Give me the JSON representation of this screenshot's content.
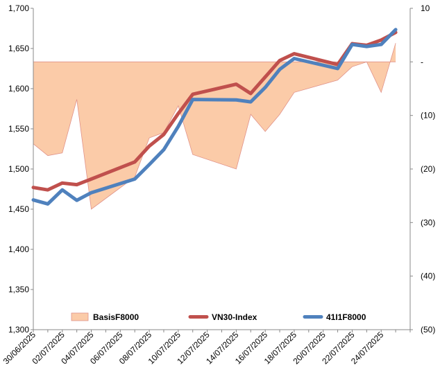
{
  "chart_data": {
    "type": "line",
    "x_tick_labels": [
      "30/06/2025",
      "02/07/2025",
      "04/07/2025",
      "06/07/2025",
      "08/07/2025",
      "10/07/2025",
      "12/07/2025",
      "14/07/2025",
      "16/07/2025",
      "18/07/2025",
      "20/07/2025",
      "22/07/2025",
      "24/07/2025"
    ],
    "x_dates": [
      "2025-06-30",
      "2025-07-01",
      "2025-07-02",
      "2025-07-03",
      "2025-07-04",
      "2025-07-07",
      "2025-07-08",
      "2025-07-09",
      "2025-07-10",
      "2025-07-11",
      "2025-07-14",
      "2025-07-15",
      "2025-07-16",
      "2025-07-17",
      "2025-07-18",
      "2025-07-21",
      "2025-07-22",
      "2025-07-23",
      "2025-07-24",
      "2025-07-25"
    ],
    "x_range": [
      "2025-06-30",
      "2025-07-26"
    ],
    "y_left": {
      "min": 1300,
      "max": 1700,
      "step": 50,
      "tick_labels": [
        "1,300",
        "1,350",
        "1,400",
        "1,450",
        "1,500",
        "1,550",
        "1,600",
        "1,650",
        "1,700"
      ]
    },
    "y_right": {
      "min": -50,
      "max": 10,
      "step": 10,
      "tick_labels": [
        "(50)",
        "(40)",
        "(30)",
        "(20)",
        "(10)",
        "-",
        "10"
      ]
    },
    "series": [
      {
        "name": "BasisF8000",
        "axis": "right",
        "style": "area",
        "color": "#fbcba8",
        "edge": "#e0928a",
        "values": [
          -15.3,
          -17.5,
          -17.0,
          -7.0,
          -27.5,
          -21.5,
          -14.2,
          -13.2,
          -8.2,
          -17.3,
          -20.0,
          -9.8,
          -13.0,
          -9.8,
          -5.7,
          -3.4,
          -0.9,
          0.0,
          -5.7,
          3.5
        ]
      },
      {
        "name": "VN30-Index",
        "axis": "left",
        "style": "line",
        "color": "#c0504d",
        "values": [
          1477.0,
          1474.0,
          1482.5,
          1480.5,
          1487.5,
          1508.8,
          1528.5,
          1543.0,
          1569.0,
          1593.0,
          1605.5,
          1594.0,
          1614.5,
          1635.0,
          1643.5,
          1630.0,
          1656.0,
          1654.0,
          1660.5,
          1670.0
        ]
      },
      {
        "name": "41I1F8000",
        "axis": "left",
        "style": "line",
        "color": "#4f81bd",
        "values": [
          1461.5,
          1456.5,
          1474.0,
          1461.0,
          1470.5,
          1487.5,
          1505.5,
          1524.0,
          1553.0,
          1586.5,
          1586.0,
          1583.5,
          1601.5,
          1624.0,
          1637.5,
          1625.0,
          1655.0,
          1652.5,
          1655.0,
          1673.5
        ]
      }
    ],
    "legend": {
      "position": "bottom-inside",
      "entries": [
        "BasisF8000",
        "VN30-Index",
        "41I1F8000"
      ]
    },
    "grid": false
  }
}
